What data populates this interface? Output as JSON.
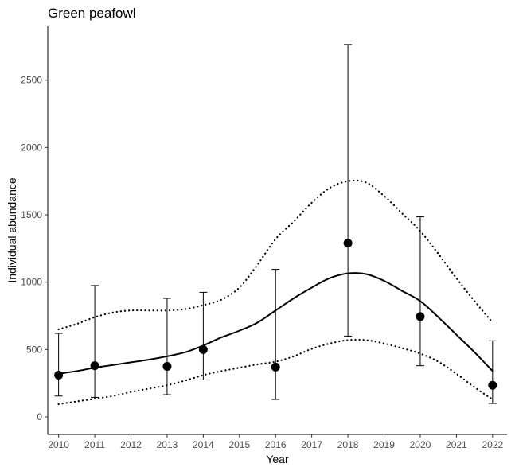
{
  "chart_data": {
    "type": "scatter",
    "title": "Green peafowl",
    "xlabel": "Year",
    "ylabel": "Individual abundance",
    "xlim": [
      2009.7,
      2022.4
    ],
    "ylim": [
      -130,
      2900
    ],
    "x_ticks": [
      2010,
      2011,
      2012,
      2013,
      2014,
      2015,
      2016,
      2017,
      2018,
      2019,
      2020,
      2021,
      2022
    ],
    "y_ticks": [
      0,
      500,
      1000,
      1500,
      2000,
      2500
    ],
    "grid": false,
    "legend": "none",
    "observations": [
      {
        "x": 2010,
        "y": 310,
        "lower": 155,
        "upper": 620
      },
      {
        "x": 2011,
        "y": 380,
        "lower": 145,
        "upper": 975
      },
      {
        "x": 2013,
        "y": 375,
        "lower": 165,
        "upper": 880
      },
      {
        "x": 2014,
        "y": 500,
        "lower": 275,
        "upper": 925
      },
      {
        "x": 2016,
        "y": 370,
        "lower": 130,
        "upper": 1095
      },
      {
        "x": 2018,
        "y": 1290,
        "lower": 600,
        "upper": 2765
      },
      {
        "x": 2020,
        "y": 745,
        "lower": 380,
        "upper": 1485
      },
      {
        "x": 2022,
        "y": 235,
        "lower": 100,
        "upper": 565
      }
    ],
    "trend": {
      "x": [
        2010,
        2010.5,
        2011,
        2011.5,
        2012,
        2012.5,
        2013,
        2013.5,
        2014,
        2014.5,
        2015,
        2015.5,
        2016,
        2016.5,
        2017,
        2017.5,
        2018,
        2018.5,
        2019,
        2019.5,
        2020,
        2020.5,
        2021,
        2021.5,
        2022
      ],
      "y": [
        320,
        340,
        365,
        385,
        405,
        425,
        450,
        480,
        530,
        590,
        640,
        700,
        790,
        880,
        960,
        1030,
        1065,
        1060,
        1010,
        935,
        860,
        740,
        610,
        480,
        340
      ]
    },
    "upper_band": {
      "x": [
        2010,
        2010.5,
        2011,
        2011.5,
        2012,
        2012.5,
        2013,
        2013.5,
        2014,
        2014.5,
        2015,
        2015.5,
        2016,
        2016.5,
        2017,
        2017.5,
        2018,
        2018.5,
        2019,
        2019.5,
        2020,
        2020.5,
        2021,
        2021.5,
        2022
      ],
      "y": [
        650,
        690,
        740,
        775,
        790,
        790,
        790,
        800,
        830,
        870,
        960,
        1130,
        1320,
        1450,
        1590,
        1700,
        1750,
        1740,
        1640,
        1510,
        1380,
        1210,
        1030,
        860,
        700
      ]
    },
    "lower_band": {
      "x": [
        2010,
        2010.5,
        2011,
        2011.5,
        2012,
        2012.5,
        2013,
        2013.5,
        2014,
        2014.5,
        2015,
        2015.5,
        2016,
        2016.5,
        2017,
        2017.5,
        2018,
        2018.5,
        2019,
        2019.5,
        2020,
        2020.5,
        2021,
        2021.5,
        2022
      ],
      "y": [
        95,
        115,
        135,
        155,
        185,
        210,
        235,
        270,
        310,
        340,
        365,
        390,
        410,
        450,
        505,
        545,
        570,
        570,
        545,
        510,
        470,
        410,
        320,
        220,
        130
      ]
    },
    "colors": {
      "points": "#000000",
      "lines": "#000000",
      "text": "#000000",
      "ticks": "#4d4d4d"
    }
  }
}
